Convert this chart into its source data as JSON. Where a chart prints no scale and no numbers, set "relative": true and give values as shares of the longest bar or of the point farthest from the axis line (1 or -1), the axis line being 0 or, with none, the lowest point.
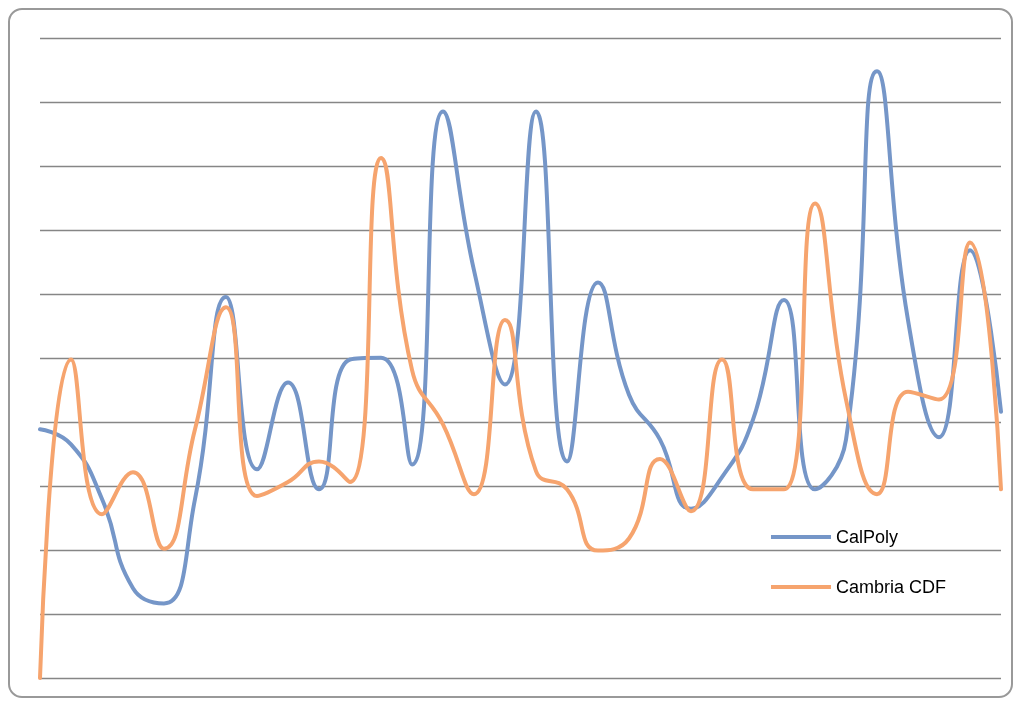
{
  "chart_data": {
    "type": "line",
    "relative": true,
    "grid": "y",
    "legend": "bottom right",
    "marker": "none",
    "line_style": "solid",
    "categories": [
      null,
      null,
      null,
      null,
      null,
      null,
      null,
      null,
      null,
      null,
      null,
      null,
      null,
      null,
      null,
      null,
      null,
      null,
      null,
      null,
      null,
      null,
      null,
      null,
      null,
      null,
      null,
      null,
      null,
      null,
      null,
      null
    ],
    "series": [
      {
        "name": "CalPoly",
        "color": "#7596c8",
        "values": [
          0.41,
          0.385,
          0.295,
          0.148,
          0.123,
          0.295,
          0.628,
          0.344,
          0.487,
          0.311,
          0.525,
          0.528,
          0.352,
          0.934,
          0.672,
          0.484,
          0.934,
          0.357,
          0.652,
          0.467,
          0.393,
          0.279,
          0.331,
          0.426,
          0.623,
          0.311,
          0.393,
          1,
          0.59,
          0.397,
          0.705,
          0.439
        ]
      },
      {
        "name": "Cambria CDF",
        "color": "#f6a46e",
        "values": [
          0,
          0.525,
          0.27,
          0.339,
          0.213,
          0.41,
          0.611,
          0.3,
          0.323,
          0.357,
          0.323,
          0.857,
          0.508,
          0.418,
          0.303,
          0.59,
          0.341,
          0.311,
          0.21,
          0.23,
          0.361,
          0.275,
          0.525,
          0.311,
          0.311,
          0.782,
          0.459,
          0.303,
          0.472,
          0.459,
          0.718,
          0.311
        ]
      }
    ]
  }
}
